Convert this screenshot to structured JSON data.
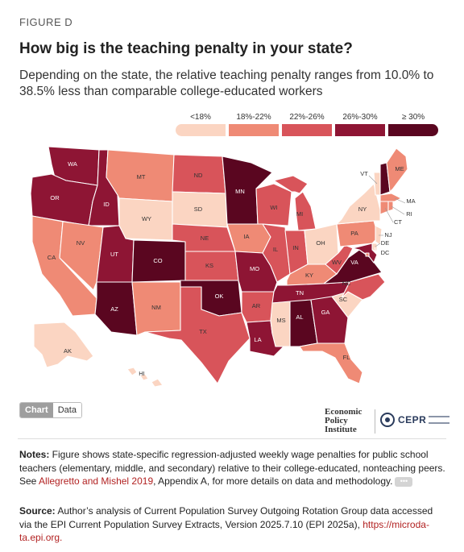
{
  "figure_label": "FIGURE D",
  "title": "How big is the teaching penalty in your state?",
  "subtitle": "Depending on the state, the relative teaching penalty ranges from 10.0% to 38.5% less than comparable college-educated workers",
  "legend": [
    {
      "label": "<18%",
      "color": "#fbd5c2"
    },
    {
      "label": "18%-22%",
      "color": "#ef8a75"
    },
    {
      "label": "22%-26%",
      "color": "#d8545a"
    },
    {
      "label": "26%-30%",
      "color": "#8e1534"
    },
    {
      "label": "≥ 30%",
      "color": "#5a0620"
    }
  ],
  "tabs": {
    "chart": "Chart",
    "data": "Data"
  },
  "logos": {
    "epi": [
      "Economic",
      "Policy",
      "Institute"
    ],
    "cepr": "CEPR"
  },
  "notes": {
    "lead": "Notes:",
    "text1": " Figure shows state-specific regression-adjusted weekly wage penalties for public school teachers (elementary, middle, and secondary) relative to their college-educated, nonteaching peers. See ",
    "link": "Allegretto and Mishel 2019",
    "text2": ", Appendix A, for more details on data and methodology.",
    "more": "•••"
  },
  "source": {
    "lead": "Source:",
    "text": " Author’s analysis of Current Population Survey Outgoing Rotation Group data accessed via the EPI Current Population Survey Extracts, Version 2025.7.10 (EPI 2025a),",
    "link": "https://microda­ta.epi.org."
  },
  "map_data": {
    "states": {
      "WA": 3,
      "OR": 3,
      "ID": 3,
      "MT": 1,
      "WY": 0,
      "ND": 2,
      "SD": 0,
      "MN": 4,
      "CA": 1,
      "NV": 1,
      "UT": 3,
      "CO": 4,
      "NE": 2,
      "IA": 1,
      "KS": 2,
      "MO": 3,
      "IL": 2,
      "WI": 2,
      "MI": 2,
      "IN": 2,
      "OH": 0,
      "KY": 1,
      "WV": 2,
      "PA": 1,
      "NY": 0,
      "VT": 0,
      "NH": 4,
      "ME": 1,
      "MA": 1,
      "CT": 1,
      "RI": 1,
      "NJ": 0,
      "DE": 0,
      "MD": 3,
      "DC": 1,
      "VA": 4,
      "NC": 2,
      "SC": 0,
      "GA": 3,
      "FL": 1,
      "AL": 4,
      "MS": 0,
      "TN": 3,
      "AR": 2,
      "LA": 3,
      "OK": 4,
      "TX": 2,
      "NM": 1,
      "AZ": 4,
      "AK": 0,
      "HI": 0
    }
  }
}
